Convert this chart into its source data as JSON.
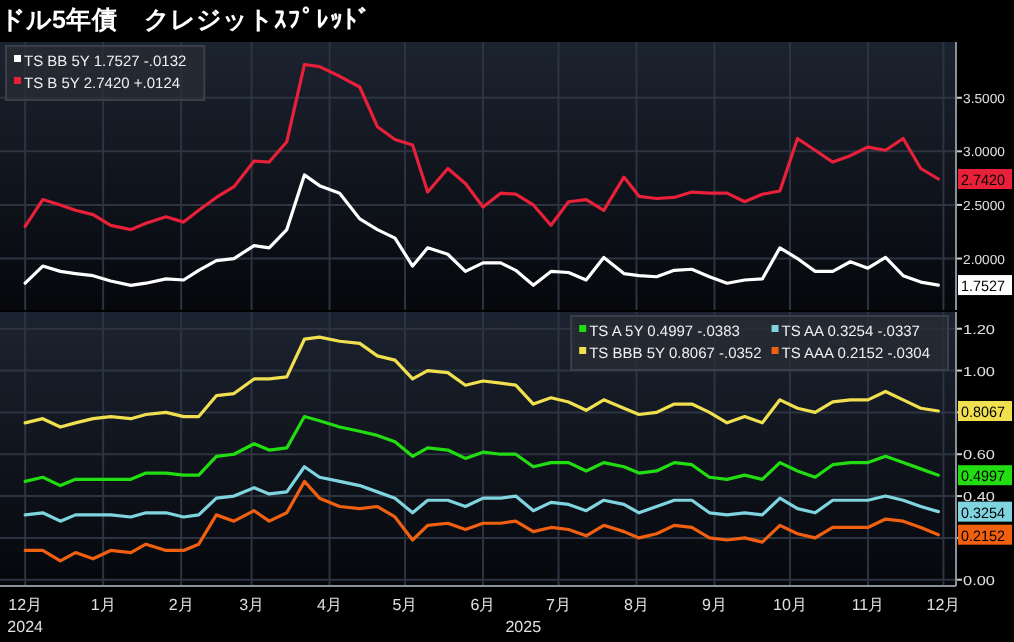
{
  "chart_data": [
    {
      "type": "line",
      "title": "ドル5年債　クレジットｽﾌﾟﾚｯﾄﾞ",
      "x": [
        "2024-12-15",
        "2024-12-22",
        "2024-12-29",
        "2025-01-04",
        "2025-01-11",
        "2025-01-18",
        "2025-01-26",
        "2025-02-01",
        "2025-02-09",
        "2025-02-16",
        "2025-02-22",
        "2025-03-01",
        "2025-03-08",
        "2025-03-16",
        "2025-03-22",
        "2025-03-29",
        "2025-04-05",
        "2025-04-11",
        "2025-04-19",
        "2025-04-27",
        "2025-05-04",
        "2025-05-11",
        "2025-05-18",
        "2025-05-24",
        "2025-06-01",
        "2025-06-08",
        "2025-06-15",
        "2025-06-22",
        "2025-06-28",
        "2025-07-05",
        "2025-07-12",
        "2025-07-19",
        "2025-07-26",
        "2025-08-02",
        "2025-08-10",
        "2025-08-16",
        "2025-08-23",
        "2025-08-30",
        "2025-09-06",
        "2025-09-13",
        "2025-09-20",
        "2025-09-27",
        "2025-10-04",
        "2025-10-11",
        "2025-10-18",
        "2025-10-25",
        "2025-11-01",
        "2025-11-08",
        "2025-11-15",
        "2025-11-22",
        "2025-11-29",
        "2025-12-06",
        "2025-12-13"
      ],
      "series": [
        {
          "name": "TS BB 5Y 1.7527 -.0132",
          "color": "#ffffff",
          "values": [
            1.77,
            1.93,
            1.88,
            1.86,
            1.84,
            1.79,
            1.75,
            1.77,
            1.81,
            1.8,
            1.89,
            1.98,
            2.0,
            2.12,
            2.1,
            2.27,
            2.78,
            2.68,
            2.61,
            2.37,
            2.27,
            2.19,
            1.93,
            2.1,
            2.04,
            1.88,
            1.96,
            1.96,
            1.89,
            1.75,
            1.88,
            1.87,
            1.8,
            2.01,
            1.86,
            1.84,
            1.83,
            1.89,
            1.9,
            1.83,
            1.77,
            1.8,
            1.81,
            2.1,
            2.0,
            1.88,
            1.88,
            1.97,
            1.91,
            2.01,
            1.84,
            1.78,
            1.7527
          ],
          "value_labels": [
            null,
            null,
            null,
            null,
            null,
            null,
            null,
            null,
            null,
            null,
            null,
            null,
            null,
            null,
            null,
            null,
            null,
            null,
            null,
            null,
            null,
            null,
            null,
            null,
            null,
            null,
            null,
            null,
            null,
            null,
            null,
            null,
            null,
            null,
            null,
            null,
            null,
            null,
            null,
            null,
            null,
            null,
            null,
            null,
            null,
            null,
            null,
            null,
            null,
            null,
            null,
            null,
            "1.7527"
          ]
        },
        {
          "name": "TS B 5Y 2.7420 +.0124",
          "color": "#e8203a",
          "values": [
            2.3,
            2.55,
            2.5,
            2.45,
            2.41,
            2.31,
            2.27,
            2.33,
            2.39,
            2.34,
            2.45,
            2.57,
            2.67,
            2.91,
            2.9,
            3.09,
            3.81,
            3.79,
            3.7,
            3.6,
            3.23,
            3.11,
            3.06,
            2.62,
            2.84,
            2.7,
            2.48,
            2.61,
            2.6,
            2.5,
            2.31,
            2.53,
            2.55,
            2.45,
            2.76,
            2.58,
            2.56,
            2.57,
            2.62,
            2.61,
            2.61,
            2.53,
            2.6,
            2.63,
            3.12,
            3.01,
            2.9,
            2.96,
            3.04,
            3.01,
            3.12,
            2.84,
            2.742
          ],
          "value_labels": [
            null,
            null,
            null,
            null,
            null,
            null,
            null,
            null,
            null,
            null,
            null,
            null,
            null,
            null,
            null,
            null,
            null,
            null,
            null,
            null,
            null,
            null,
            null,
            null,
            null,
            null,
            null,
            null,
            null,
            null,
            null,
            null,
            null,
            null,
            null,
            null,
            null,
            null,
            null,
            null,
            null,
            null,
            null,
            null,
            null,
            null,
            null,
            null,
            null,
            null,
            null,
            null,
            "2.7420"
          ]
        }
      ],
      "xlim": [
        "2024-12-05",
        "2025-12-20"
      ],
      "xticks": [
        {
          "value": "2024-12-15",
          "label": null
        },
        {
          "value": "2025-01-15",
          "label": null
        },
        {
          "value": "2025-02-15",
          "label": null
        },
        {
          "value": "2025-03-15",
          "label": null
        },
        {
          "value": "2025-04-15",
          "label": null
        },
        {
          "value": "2025-05-15",
          "label": null
        },
        {
          "value": "2025-06-15",
          "label": null
        },
        {
          "value": "2025-07-15",
          "label": null
        },
        {
          "value": "2025-08-15",
          "label": null
        },
        {
          "value": "2025-09-15",
          "label": null
        },
        {
          "value": "2025-10-15",
          "label": null
        },
        {
          "value": "2025-11-15",
          "label": null
        },
        {
          "value": "2025-12-15",
          "label": null
        }
      ],
      "ylim": [
        1.52,
        4.02
      ],
      "yticks": [
        {
          "value": 2.0,
          "label": "2.0000"
        },
        {
          "value": 2.5,
          "label": "2.5000"
        },
        {
          "value": 3.0,
          "label": "3.0000"
        },
        {
          "value": 3.5,
          "label": "3.5000"
        }
      ],
      "grid": true,
      "legend": "top left",
      "tick_labels": "y"
    },
    {
      "type": "line",
      "x": [
        "2024-12-15",
        "2024-12-22",
        "2024-12-29",
        "2025-01-04",
        "2025-01-11",
        "2025-01-18",
        "2025-01-26",
        "2025-02-01",
        "2025-02-09",
        "2025-02-16",
        "2025-02-22",
        "2025-03-01",
        "2025-03-08",
        "2025-03-16",
        "2025-03-22",
        "2025-03-29",
        "2025-04-05",
        "2025-04-11",
        "2025-04-19",
        "2025-04-27",
        "2025-05-04",
        "2025-05-11",
        "2025-05-18",
        "2025-05-24",
        "2025-06-01",
        "2025-06-08",
        "2025-06-15",
        "2025-06-22",
        "2025-06-28",
        "2025-07-05",
        "2025-07-12",
        "2025-07-19",
        "2025-07-26",
        "2025-08-02",
        "2025-08-10",
        "2025-08-16",
        "2025-08-23",
        "2025-08-30",
        "2025-09-06",
        "2025-09-13",
        "2025-09-20",
        "2025-09-27",
        "2025-10-04",
        "2025-10-11",
        "2025-10-18",
        "2025-10-25",
        "2025-11-01",
        "2025-11-08",
        "2025-11-15",
        "2025-11-22",
        "2025-11-29",
        "2025-12-06",
        "2025-12-13"
      ],
      "series": [
        {
          "name": "TS A 5Y    0.4997 -.0383",
          "color": "#22dd11",
          "values": [
            0.47,
            0.49,
            0.45,
            0.48,
            0.48,
            0.48,
            0.48,
            0.51,
            0.51,
            0.5,
            0.5,
            0.59,
            0.6,
            0.65,
            0.62,
            0.63,
            0.78,
            0.76,
            0.73,
            0.71,
            0.69,
            0.66,
            0.59,
            0.63,
            0.62,
            0.58,
            0.61,
            0.6,
            0.6,
            0.54,
            0.56,
            0.56,
            0.52,
            0.56,
            0.54,
            0.51,
            0.52,
            0.56,
            0.55,
            0.49,
            0.48,
            0.5,
            0.48,
            0.56,
            0.52,
            0.49,
            0.55,
            0.56,
            0.56,
            0.59,
            0.56,
            0.53,
            0.4997
          ],
          "value_labels": [
            null,
            null,
            null,
            null,
            null,
            null,
            null,
            null,
            null,
            null,
            null,
            null,
            null,
            null,
            null,
            null,
            null,
            null,
            null,
            null,
            null,
            null,
            null,
            null,
            null,
            null,
            null,
            null,
            null,
            null,
            null,
            null,
            null,
            null,
            null,
            null,
            null,
            null,
            null,
            null,
            null,
            null,
            null,
            null,
            null,
            null,
            null,
            null,
            null,
            null,
            null,
            null,
            "0.4997"
          ]
        },
        {
          "name": "TS AA  0.3254 -.0337",
          "color": "#7fd4e0",
          "values": [
            0.31,
            0.32,
            0.28,
            0.31,
            0.31,
            0.31,
            0.3,
            0.32,
            0.32,
            0.3,
            0.31,
            0.39,
            0.4,
            0.44,
            0.41,
            0.42,
            0.54,
            0.49,
            0.47,
            0.45,
            0.42,
            0.39,
            0.32,
            0.38,
            0.38,
            0.35,
            0.39,
            0.39,
            0.4,
            0.33,
            0.37,
            0.36,
            0.33,
            0.38,
            0.36,
            0.32,
            0.35,
            0.38,
            0.38,
            0.32,
            0.31,
            0.32,
            0.31,
            0.39,
            0.34,
            0.32,
            0.38,
            0.38,
            0.38,
            0.4,
            0.38,
            0.35,
            0.3254
          ],
          "value_labels": [
            null,
            null,
            null,
            null,
            null,
            null,
            null,
            null,
            null,
            null,
            null,
            null,
            null,
            null,
            null,
            null,
            null,
            null,
            null,
            null,
            null,
            null,
            null,
            null,
            null,
            null,
            null,
            null,
            null,
            null,
            null,
            null,
            null,
            null,
            null,
            null,
            null,
            null,
            null,
            null,
            null,
            null,
            null,
            null,
            null,
            null,
            null,
            null,
            null,
            null,
            null,
            null,
            "0.3254"
          ]
        },
        {
          "name": "TS BBB 5Y 0.8067 -.0352",
          "color": "#f0e050",
          "values": [
            0.75,
            0.77,
            0.73,
            0.75,
            0.77,
            0.78,
            0.77,
            0.79,
            0.8,
            0.78,
            0.78,
            0.88,
            0.89,
            0.96,
            0.96,
            0.97,
            1.15,
            1.16,
            1.14,
            1.13,
            1.07,
            1.05,
            0.96,
            1.0,
            0.99,
            0.93,
            0.95,
            0.94,
            0.93,
            0.84,
            0.87,
            0.85,
            0.81,
            0.86,
            0.82,
            0.79,
            0.8,
            0.84,
            0.84,
            0.8,
            0.75,
            0.78,
            0.75,
            0.86,
            0.82,
            0.8,
            0.85,
            0.86,
            0.86,
            0.9,
            0.86,
            0.82,
            0.8067
          ],
          "value_labels": [
            null,
            null,
            null,
            null,
            null,
            null,
            null,
            null,
            null,
            null,
            null,
            null,
            null,
            null,
            null,
            null,
            null,
            null,
            null,
            null,
            null,
            null,
            null,
            null,
            null,
            null,
            null,
            null,
            null,
            null,
            null,
            null,
            null,
            null,
            null,
            null,
            null,
            null,
            null,
            null,
            null,
            null,
            null,
            null,
            null,
            null,
            null,
            null,
            null,
            null,
            null,
            null,
            "0.8067"
          ]
        },
        {
          "name": "TS AAA 0.2152 -.0304",
          "color": "#f06010",
          "values": [
            0.14,
            0.14,
            0.09,
            0.13,
            0.1,
            0.14,
            0.13,
            0.17,
            0.14,
            0.14,
            0.17,
            0.31,
            0.28,
            0.33,
            0.28,
            0.32,
            0.47,
            0.39,
            0.35,
            0.34,
            0.35,
            0.3,
            0.19,
            0.26,
            0.27,
            0.24,
            0.27,
            0.27,
            0.28,
            0.23,
            0.25,
            0.24,
            0.21,
            0.26,
            0.23,
            0.2,
            0.22,
            0.26,
            0.25,
            0.2,
            0.19,
            0.2,
            0.18,
            0.26,
            0.22,
            0.2,
            0.25,
            0.25,
            0.25,
            0.29,
            0.28,
            0.25,
            0.2152
          ],
          "value_labels": [
            null,
            null,
            null,
            null,
            null,
            null,
            null,
            null,
            null,
            null,
            null,
            null,
            null,
            null,
            null,
            null,
            null,
            null,
            null,
            null,
            null,
            null,
            null,
            null,
            null,
            null,
            null,
            null,
            null,
            null,
            null,
            null,
            null,
            null,
            null,
            null,
            null,
            null,
            null,
            null,
            null,
            null,
            null,
            null,
            null,
            null,
            null,
            null,
            null,
            null,
            null,
            null,
            "0.2152"
          ]
        }
      ],
      "xlim": [
        "2024-12-05",
        "2025-12-20"
      ],
      "xticks": [
        {
          "value": "2024-12-15",
          "label": "12月"
        },
        {
          "value": "2025-01-15",
          "label": "1月"
        },
        {
          "value": "2025-02-15",
          "label": "2月"
        },
        {
          "value": "2025-03-15",
          "label": "3月"
        },
        {
          "value": "2025-04-15",
          "label": "4月"
        },
        {
          "value": "2025-05-15",
          "label": "5月"
        },
        {
          "value": "2025-06-15",
          "label": "6月"
        },
        {
          "value": "2025-07-15",
          "label": "7月"
        },
        {
          "value": "2025-08-15",
          "label": "8月"
        },
        {
          "value": "2025-09-15",
          "label": "9月"
        },
        {
          "value": "2025-10-15",
          "label": "10月"
        },
        {
          "value": "2025-11-15",
          "label": "11月"
        },
        {
          "value": "2025-12-15",
          "label": "12月"
        }
      ],
      "ylim": [
        -0.03,
        1.28
      ],
      "yticks": [
        {
          "value": 0.0,
          "label": "0.00"
        },
        {
          "value": 0.2,
          "label": null
        },
        {
          "value": 0.4,
          "label": "0.40"
        },
        {
          "value": 0.6,
          "label": "0.60"
        },
        {
          "value": 0.8,
          "label": null
        },
        {
          "value": 1.0,
          "label": "1.00"
        },
        {
          "value": 1.2,
          "label": "1.20"
        }
      ],
      "grid": true,
      "legend": "top right",
      "annotations": [
        "2024",
        "2025"
      ]
    }
  ]
}
